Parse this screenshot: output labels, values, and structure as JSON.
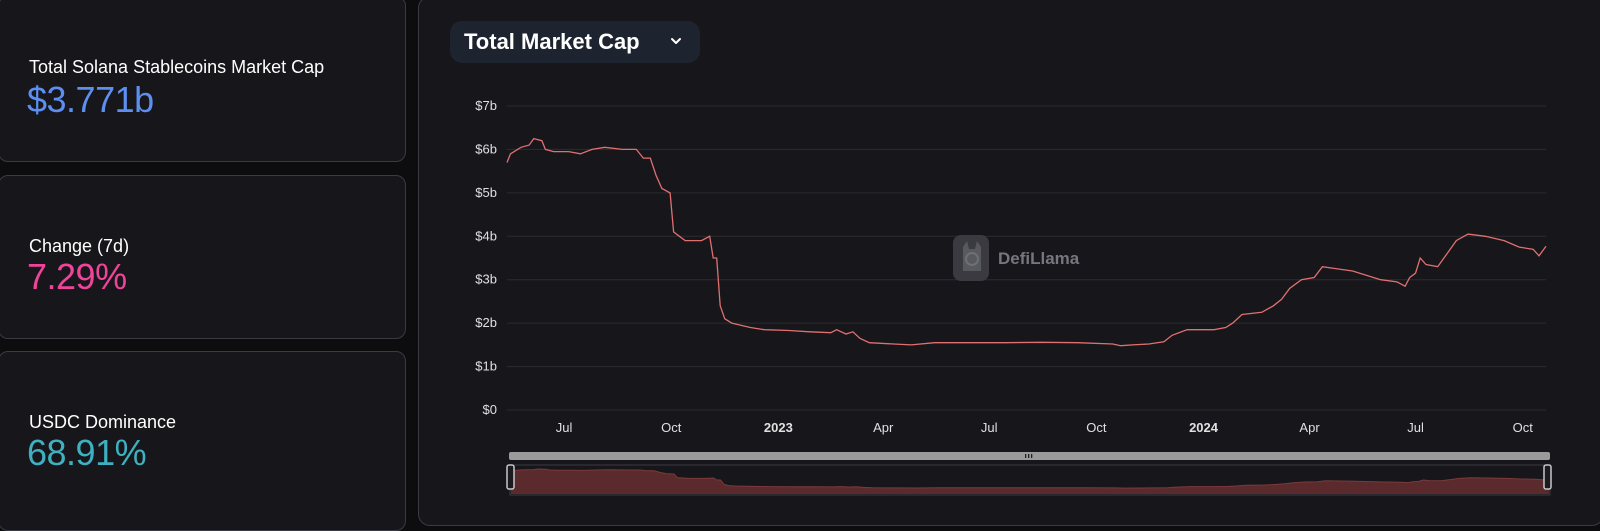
{
  "stats": [
    {
      "label": "Total Solana Stablecoins Market Cap",
      "value": "$3.771b",
      "color": "#5c8ff0"
    },
    {
      "label": "Change (7d)",
      "value": "7.29%",
      "color": "#f0449b"
    },
    {
      "label": "USDC Dominance",
      "value": "68.91%",
      "color": "#3fb0c0"
    }
  ],
  "chart_control": {
    "dropdown_label": "Total Market Cap",
    "icon": "chevron-down-icon"
  },
  "watermark": {
    "text": "DefiLlama",
    "icon": "llama-logo-icon"
  },
  "colors": {
    "line": "#e07070",
    "area": "#5a2a2c",
    "grid": "#2b2b31",
    "text": "#e0e0e0"
  },
  "chart_data": {
    "type": "line",
    "title": "",
    "xlabel": "",
    "ylabel": "",
    "x_ticks": [
      {
        "date": "2022-07-01",
        "label": "Jul",
        "bold": false
      },
      {
        "date": "2022-10-01",
        "label": "Oct",
        "bold": false
      },
      {
        "date": "2023-01-01",
        "label": "2023",
        "bold": true
      },
      {
        "date": "2023-04-01",
        "label": "Apr",
        "bold": false
      },
      {
        "date": "2023-07-01",
        "label": "Jul",
        "bold": false
      },
      {
        "date": "2023-10-01",
        "label": "Oct",
        "bold": false
      },
      {
        "date": "2024-01-01",
        "label": "2024",
        "bold": true
      },
      {
        "date": "2024-04-01",
        "label": "Apr",
        "bold": false
      },
      {
        "date": "2024-07-01",
        "label": "Jul",
        "bold": false
      },
      {
        "date": "2024-10-01",
        "label": "Oct",
        "bold": false
      }
    ],
    "y_ticks": [
      "$0",
      "$1b",
      "$2b",
      "$3b",
      "$4b",
      "$5b",
      "$6b",
      "$7b"
    ],
    "ylim": [
      0,
      7
    ],
    "xlim": [
      "2022-05-13",
      "2024-10-21"
    ],
    "grid": true,
    "series": [
      {
        "values": [
          [
            "2022-05-13",
            5.7
          ],
          [
            "2022-05-16",
            5.9
          ],
          [
            "2022-05-25",
            6.05
          ],
          [
            "2022-06-01",
            6.1
          ],
          [
            "2022-06-05",
            6.25
          ],
          [
            "2022-06-12",
            6.2
          ],
          [
            "2022-06-15",
            6.0
          ],
          [
            "2022-06-22",
            5.95
          ],
          [
            "2022-07-05",
            5.95
          ],
          [
            "2022-07-15",
            5.9
          ],
          [
            "2022-07-25",
            6.0
          ],
          [
            "2022-08-05",
            6.05
          ],
          [
            "2022-08-20",
            6.0
          ],
          [
            "2022-09-01",
            6.0
          ],
          [
            "2022-09-07",
            5.8
          ],
          [
            "2022-09-13",
            5.8
          ],
          [
            "2022-09-18",
            5.4
          ],
          [
            "2022-09-23",
            5.1
          ],
          [
            "2022-09-30",
            5.0
          ],
          [
            "2022-10-03",
            4.1
          ],
          [
            "2022-10-08",
            4.0
          ],
          [
            "2022-10-13",
            3.9
          ],
          [
            "2022-10-27",
            3.9
          ],
          [
            "2022-11-03",
            4.0
          ],
          [
            "2022-11-06",
            3.5
          ],
          [
            "2022-11-09",
            3.5
          ],
          [
            "2022-11-12",
            2.4
          ],
          [
            "2022-11-16",
            2.1
          ],
          [
            "2022-11-22",
            2.0
          ],
          [
            "2022-12-08",
            1.9
          ],
          [
            "2022-12-20",
            1.85
          ],
          [
            "2023-01-10",
            1.83
          ],
          [
            "2023-01-28",
            1.8
          ],
          [
            "2023-02-15",
            1.78
          ],
          [
            "2023-02-20",
            1.85
          ],
          [
            "2023-02-28",
            1.75
          ],
          [
            "2023-03-06",
            1.8
          ],
          [
            "2023-03-12",
            1.65
          ],
          [
            "2023-03-20",
            1.55
          ],
          [
            "2023-04-10",
            1.52
          ],
          [
            "2023-04-25",
            1.5
          ],
          [
            "2023-05-15",
            1.55
          ],
          [
            "2023-06-15",
            1.55
          ],
          [
            "2023-07-15",
            1.55
          ],
          [
            "2023-08-15",
            1.56
          ],
          [
            "2023-09-15",
            1.55
          ],
          [
            "2023-10-15",
            1.52
          ],
          [
            "2023-10-22",
            1.48
          ],
          [
            "2023-11-01",
            1.5
          ],
          [
            "2023-11-15",
            1.52
          ],
          [
            "2023-11-28",
            1.57
          ],
          [
            "2023-12-05",
            1.72
          ],
          [
            "2023-12-18",
            1.85
          ],
          [
            "2024-01-10",
            1.85
          ],
          [
            "2024-01-20",
            1.9
          ],
          [
            "2024-01-26",
            2.0
          ],
          [
            "2024-02-03",
            2.2
          ],
          [
            "2024-02-20",
            2.25
          ],
          [
            "2024-03-01",
            2.4
          ],
          [
            "2024-03-08",
            2.55
          ],
          [
            "2024-03-15",
            2.8
          ],
          [
            "2024-03-25",
            3.0
          ],
          [
            "2024-04-05",
            3.05
          ],
          [
            "2024-04-12",
            3.3
          ],
          [
            "2024-04-25",
            3.25
          ],
          [
            "2024-05-08",
            3.2
          ],
          [
            "2024-05-20",
            3.1
          ],
          [
            "2024-06-01",
            3.0
          ],
          [
            "2024-06-15",
            2.95
          ],
          [
            "2024-06-22",
            2.85
          ],
          [
            "2024-06-26",
            3.05
          ],
          [
            "2024-07-01",
            3.15
          ],
          [
            "2024-07-05",
            3.5
          ],
          [
            "2024-07-10",
            3.35
          ],
          [
            "2024-07-20",
            3.3
          ],
          [
            "2024-07-28",
            3.6
          ],
          [
            "2024-08-05",
            3.9
          ],
          [
            "2024-08-15",
            4.05
          ],
          [
            "2024-08-30",
            4.0
          ],
          [
            "2024-09-15",
            3.9
          ],
          [
            "2024-09-28",
            3.75
          ],
          [
            "2024-10-10",
            3.7
          ],
          [
            "2024-10-15",
            3.55
          ],
          [
            "2024-10-21",
            3.77
          ]
        ]
      }
    ]
  }
}
